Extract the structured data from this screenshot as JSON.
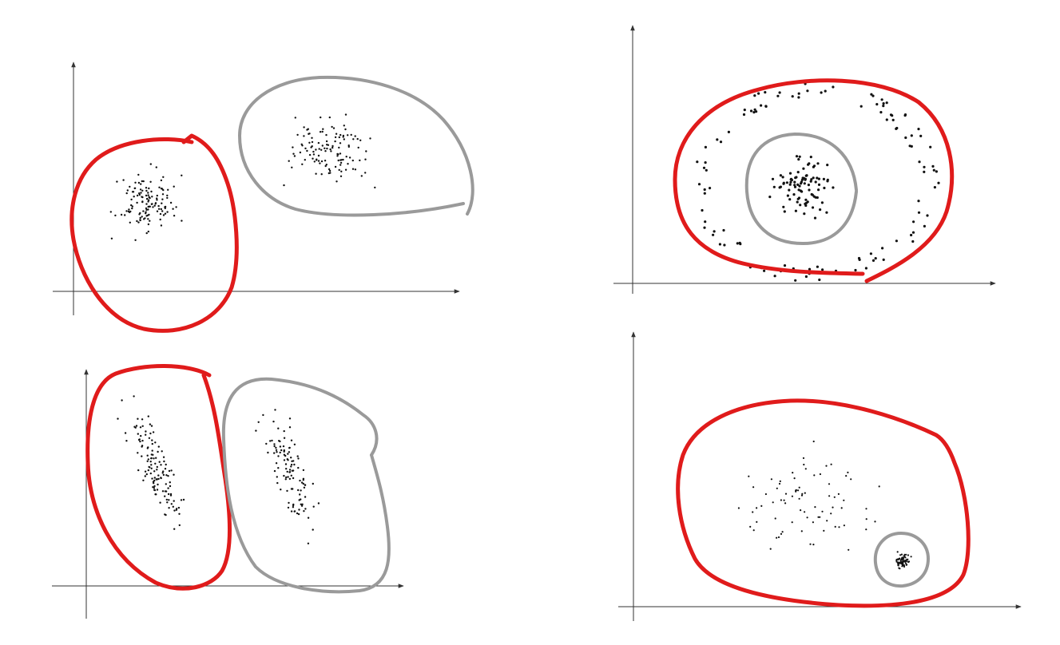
{
  "colors": {
    "background": "#ffffff",
    "axis": "#333333",
    "point": "#111111",
    "red_cluster": "#e01b1b",
    "gray_cluster": "#9a9a9a"
  },
  "panels": [
    {
      "id": "top-left",
      "description_key": "two-blobs",
      "clusters": [
        {
          "name": "red",
          "color_key": "red_cluster",
          "point_count": 130
        },
        {
          "name": "gray",
          "color_key": "gray_cluster",
          "point_count": 120
        }
      ]
    },
    {
      "id": "top-right",
      "description_key": "concentric-rings",
      "clusters": [
        {
          "name": "red-ring",
          "color_key": "red_cluster",
          "point_count": 110
        },
        {
          "name": "gray-core",
          "color_key": "gray_cluster",
          "point_count": 90
        }
      ]
    },
    {
      "id": "bottom-left",
      "description_key": "two-elongated-diagonal",
      "clusters": [
        {
          "name": "red",
          "color_key": "red_cluster",
          "point_count": 130
        },
        {
          "name": "gray",
          "color_key": "gray_cluster",
          "point_count": 110
        }
      ]
    },
    {
      "id": "bottom-right",
      "description_key": "sparse-plus-dense",
      "clusters": [
        {
          "name": "red-sparse",
          "color_key": "red_cluster",
          "point_count": 80
        },
        {
          "name": "gray-dense",
          "color_key": "gray_cluster",
          "point_count": 70
        }
      ]
    }
  ]
}
